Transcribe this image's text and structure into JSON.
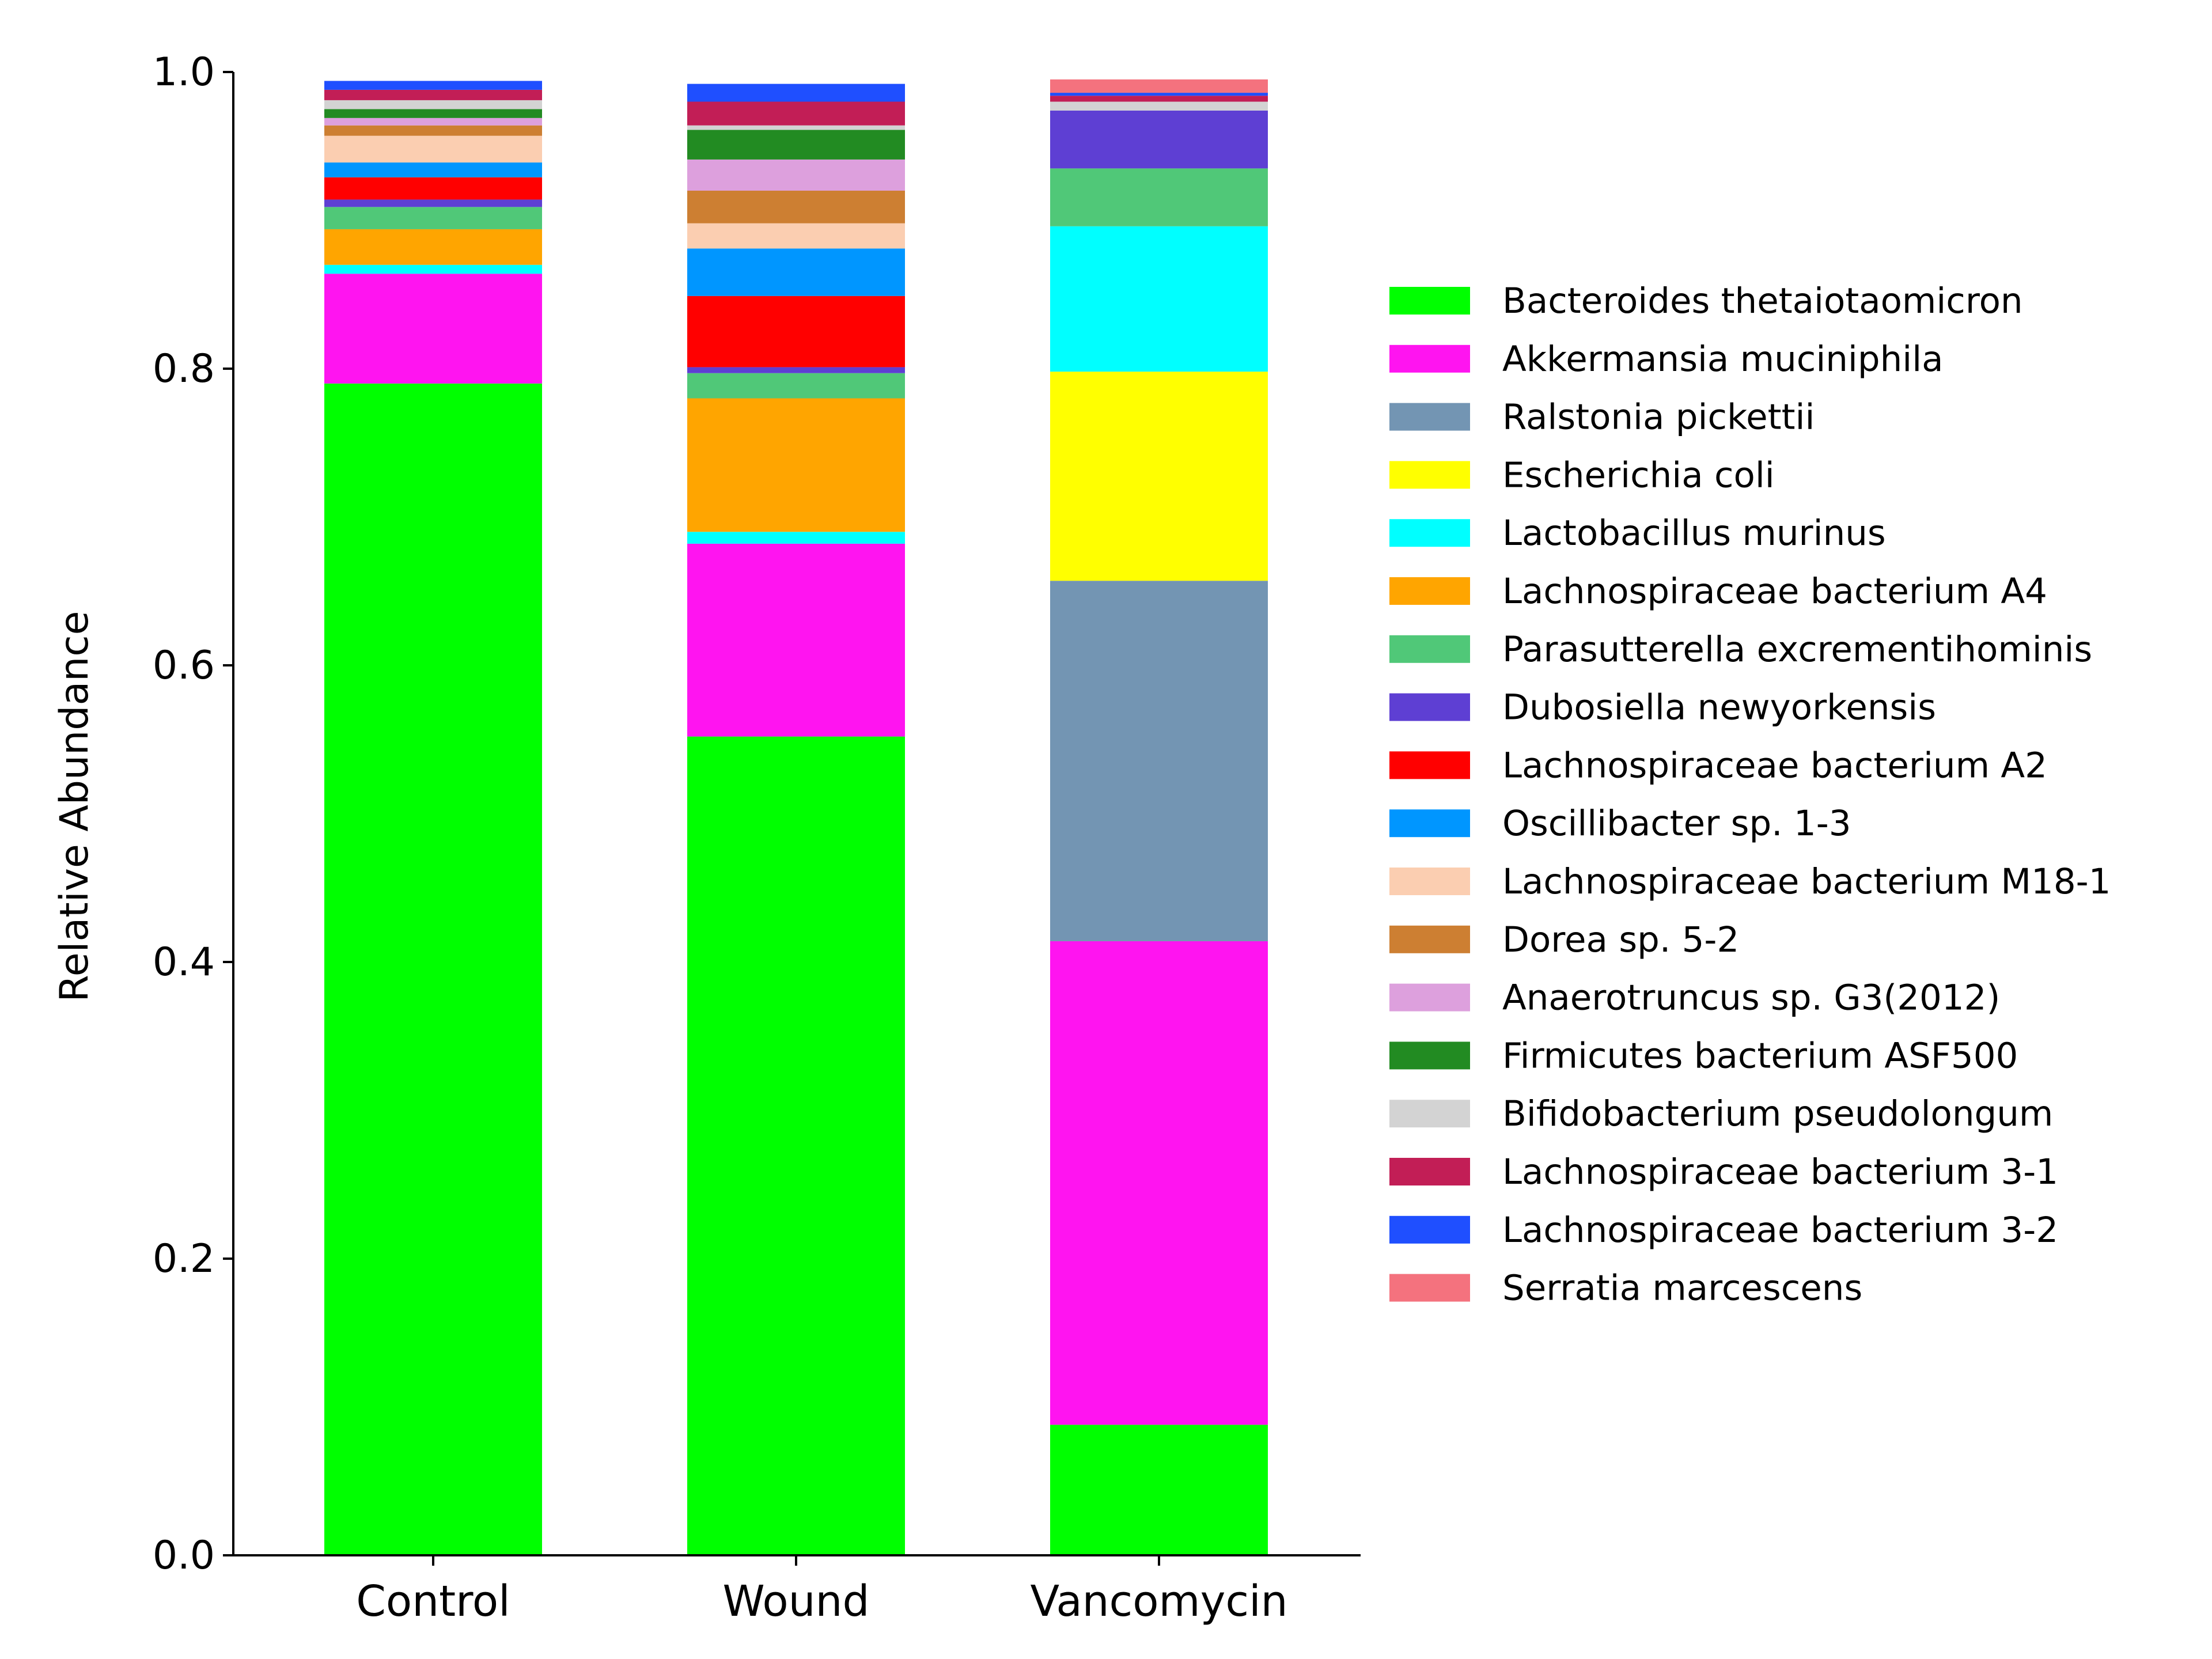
{
  "chart_data": {
    "type": "bar",
    "stacked": true,
    "categories": [
      "Control",
      "Wound",
      "Vancomycin"
    ],
    "ylabel": "Relative Abundance",
    "ylim": [
      0,
      1.0
    ],
    "yticks": [
      "0.0",
      "0.2",
      "0.4",
      "0.6",
      "0.8",
      "1.0"
    ],
    "legend_position": "right",
    "series": [
      {
        "name": "Bacteroides thetaiotaomicron",
        "color": "#00ff00",
        "values": [
          0.79,
          0.552,
          0.088
        ]
      },
      {
        "name": "Akkermansia muciniphila",
        "color": "#ff14f0",
        "values": [
          0.074,
          0.13,
          0.326
        ]
      },
      {
        "name": "Ralstonia pickettii",
        "color": "#7395b3",
        "values": [
          0.0,
          0.0,
          0.243
        ]
      },
      {
        "name": "Escherichia coli",
        "color": "#ffff00",
        "values": [
          0.0,
          0.0,
          0.141
        ]
      },
      {
        "name": "Lactobacillus murinus",
        "color": "#00ffff",
        "values": [
          0.006,
          0.008,
          0.098
        ]
      },
      {
        "name": "Lachnospiraceae bacterium A4",
        "color": "#ffa500",
        "values": [
          0.024,
          0.09,
          0.0
        ]
      },
      {
        "name": "Parasutterella excrementihominis",
        "color": "#50c878",
        "values": [
          0.015,
          0.017,
          0.039
        ]
      },
      {
        "name": "Dubosiella newyorkensis",
        "color": "#5e3fd3",
        "values": [
          0.005,
          0.004,
          0.039
        ]
      },
      {
        "name": "Lachnospiraceae bacterium A2",
        "color": "#ff0000",
        "values": [
          0.015,
          0.048,
          0.0
        ]
      },
      {
        "name": "Oscillibacter sp. 1-3",
        "color": "#0096ff",
        "values": [
          0.01,
          0.032,
          0.0
        ]
      },
      {
        "name": "Lachnospiraceae bacterium M18-1",
        "color": "#fbceb1",
        "values": [
          0.018,
          0.017,
          0.0
        ]
      },
      {
        "name": "Dorea sp. 5-2",
        "color": "#cd7f32",
        "values": [
          0.007,
          0.022,
          0.0
        ]
      },
      {
        "name": "Anaerotruncus sp. G3(2012)",
        "color": "#dda0dd",
        "values": [
          0.005,
          0.021,
          0.0
        ]
      },
      {
        "name": "Firmicutes bacterium ASF500",
        "color": "#228b22",
        "values": [
          0.006,
          0.02,
          0.0
        ]
      },
      {
        "name": "Bifidobacterium pseudolongum",
        "color": "#d3d3d3",
        "values": [
          0.006,
          0.003,
          0.006
        ]
      },
      {
        "name": "Lachnospiraceae bacterium 3-1",
        "color": "#c21e56",
        "values": [
          0.007,
          0.016,
          0.004
        ]
      },
      {
        "name": "Lachnospiraceae bacterium 3-2",
        "color": "#1f4fff",
        "values": [
          0.006,
          0.012,
          0.002
        ]
      },
      {
        "name": "Serratia marcescens",
        "color": "#f4727e",
        "values": [
          0.0,
          0.0,
          0.009
        ]
      }
    ]
  }
}
